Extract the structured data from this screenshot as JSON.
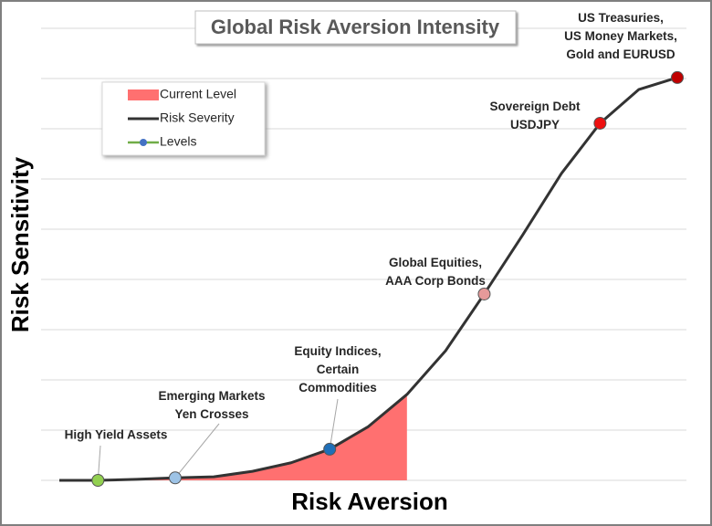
{
  "chart_data": {
    "type": "line",
    "title": "Global Risk Aversion Intensity",
    "x_label": "Risk Aversion",
    "y_label": "Risk Sensitivity",
    "categories": [
      null,
      null,
      null,
      null,
      null,
      null,
      null,
      null,
      null,
      null,
      null,
      null,
      null,
      null,
      null,
      null,
      null
    ],
    "ylim": [
      0,
      9
    ],
    "yticks": [
      0,
      1,
      2,
      3,
      4,
      5,
      6,
      7,
      8,
      9
    ],
    "grid": true,
    "legend": "upper left",
    "series": [
      {
        "name": "Current Level",
        "kind": "area",
        "color": "#ff7070",
        "values": [
          0,
          0,
          0.02,
          0.05,
          0.07,
          0.18,
          0.35,
          0.62,
          1.07,
          1.71,
          null,
          null,
          null,
          null,
          null,
          null,
          null
        ]
      },
      {
        "name": "Risk Severity",
        "kind": "line",
        "color": "#333333",
        "values": [
          0,
          0,
          0.02,
          0.05,
          0.07,
          0.18,
          0.35,
          0.62,
          1.07,
          1.71,
          2.58,
          3.71,
          4.89,
          6.11,
          7.11,
          7.78,
          8.02
        ]
      },
      {
        "name": "Levels",
        "kind": "markers",
        "color": "#70ad47",
        "values": [
          null,
          0,
          null,
          0.05,
          null,
          null,
          null,
          0.62,
          null,
          null,
          null,
          3.71,
          null,
          null,
          7.11,
          null,
          8.02
        ],
        "point_colors": [
          null,
          "#92d050",
          null,
          "#9dc3e6",
          null,
          null,
          null,
          "#1f6fb8",
          null,
          null,
          null,
          "#e69a9a",
          null,
          null,
          "#ee1111",
          null,
          "#c00000"
        ],
        "labels": [
          null,
          "High Yield Assets",
          null,
          "Emerging Markets\nYen Crosses",
          null,
          null,
          null,
          "Equity Indices,\nCertain\nCommodities",
          null,
          null,
          null,
          "Global Equities,\nAAA Corp Bonds",
          null,
          null,
          "Sovereign Debt\nUSDJPY",
          null,
          "US Treasuries,\nUS Money Markets,\nGold and EURUSD"
        ]
      }
    ]
  }
}
